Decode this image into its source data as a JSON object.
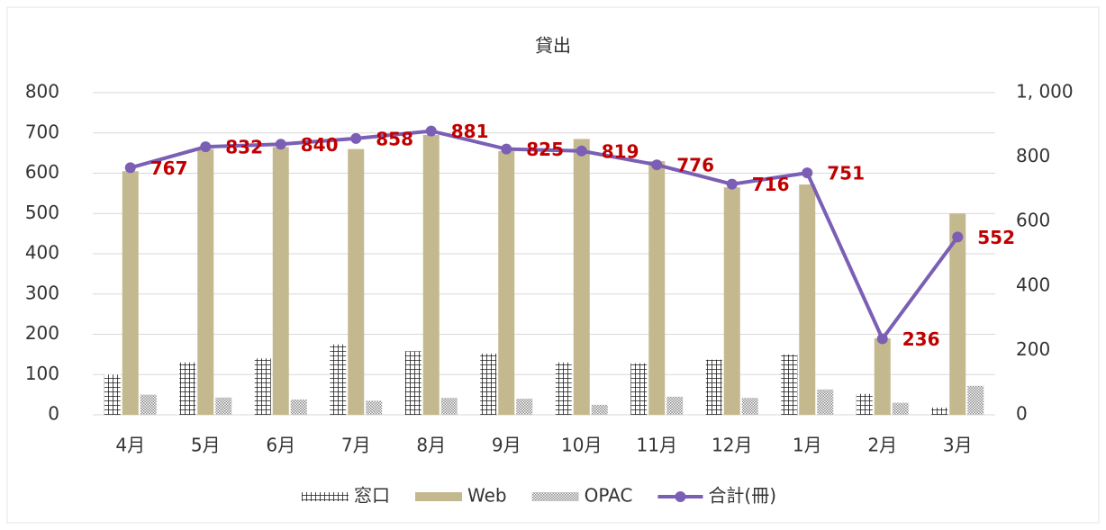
{
  "chart_data": {
    "type": "bar",
    "title": "貸出",
    "categories": [
      "4月",
      "5月",
      "6月",
      "7月",
      "8月",
      "9月",
      "10月",
      "11月",
      "12月",
      "1月",
      "2月",
      "3月"
    ],
    "series": [
      {
        "name": "窓口",
        "color": "#1a1a1a",
        "pattern": "grid",
        "values": [
          100,
          130,
          140,
          175,
          158,
          152,
          130,
          128,
          137,
          150,
          52,
          18
        ]
      },
      {
        "name": "Web",
        "color": "#c4b98e",
        "values": [
          605,
          660,
          665,
          660,
          695,
          655,
          685,
          630,
          565,
          572,
          190,
          500
        ]
      },
      {
        "name": "OPAC",
        "color": "#9a9a9a",
        "pattern": "dots",
        "values": [
          50,
          43,
          38,
          35,
          42,
          40,
          25,
          45,
          42,
          63,
          30,
          72
        ]
      },
      {
        "name": "合計(冊)",
        "color": "#7b5fb5",
        "type": "line",
        "axis": "y2",
        "label_color": "#c00000",
        "values": [
          767,
          832,
          840,
          858,
          881,
          825,
          819,
          776,
          716,
          751,
          236,
          552
        ]
      }
    ],
    "ylim": [
      0,
      800
    ],
    "yticks": [
      0,
      100,
      200,
      300,
      400,
      500,
      600,
      700,
      800
    ],
    "y2lim": [
      0,
      1000
    ],
    "y2ticks": [
      0,
      200,
      400,
      600,
      800,
      {
        "value": 1000,
        "label": "1, 000"
      }
    ],
    "grid": true,
    "legend": "bottom"
  }
}
